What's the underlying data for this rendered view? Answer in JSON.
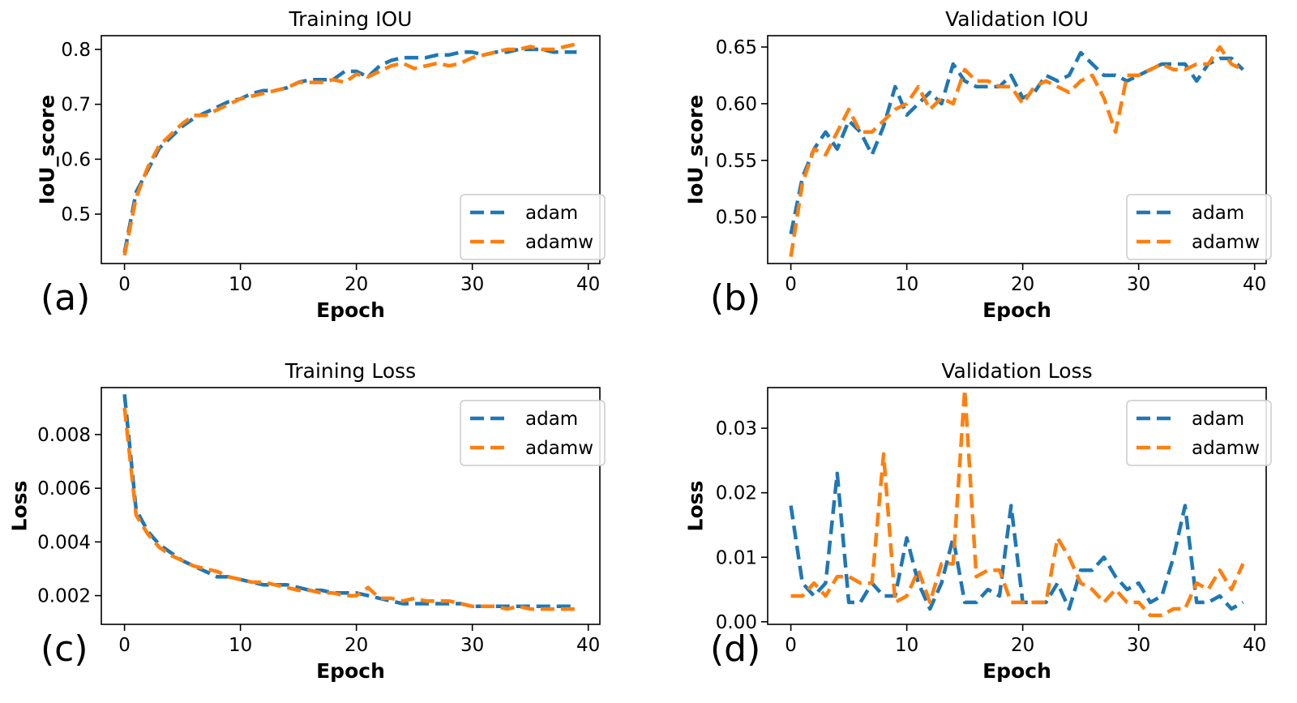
{
  "colors": {
    "adam": "#1f77b4",
    "adamw": "#ff7f0e"
  },
  "chart_data": [
    {
      "type": "line",
      "panel": "(a)",
      "title": "Training IOU",
      "xlabel": "Epoch",
      "ylabel": "IoU_score",
      "xlim": [
        -2,
        41
      ],
      "ylim": [
        0.41,
        0.825
      ],
      "xticks": [
        0,
        10,
        20,
        30,
        40
      ],
      "yticks": [
        0.5,
        0.6,
        0.7,
        0.8
      ],
      "ytick_labels": [
        "0.5",
        "0.6",
        "0.7",
        "0.8"
      ],
      "legend": "lower-right",
      "series": [
        {
          "name": "adam",
          "values": [
            0.43,
            0.54,
            0.58,
            0.62,
            0.64,
            0.66,
            0.675,
            0.685,
            0.695,
            0.705,
            0.71,
            0.72,
            0.725,
            0.725,
            0.73,
            0.74,
            0.745,
            0.745,
            0.745,
            0.76,
            0.76,
            0.75,
            0.77,
            0.78,
            0.785,
            0.785,
            0.785,
            0.79,
            0.79,
            0.795,
            0.795,
            0.79,
            0.795,
            0.795,
            0.8,
            0.8,
            0.8,
            0.795,
            0.795,
            0.795
          ]
        },
        {
          "name": "adamw",
          "values": [
            0.425,
            0.53,
            0.585,
            0.625,
            0.645,
            0.665,
            0.68,
            0.68,
            0.69,
            0.7,
            0.71,
            0.715,
            0.72,
            0.725,
            0.73,
            0.74,
            0.74,
            0.74,
            0.745,
            0.74,
            0.755,
            0.75,
            0.76,
            0.77,
            0.775,
            0.765,
            0.77,
            0.775,
            0.77,
            0.775,
            0.785,
            0.79,
            0.795,
            0.8,
            0.8,
            0.805,
            0.8,
            0.8,
            0.805,
            0.81
          ]
        }
      ]
    },
    {
      "type": "line",
      "panel": "(b)",
      "title": "Validation IOU",
      "xlabel": "Epoch",
      "ylabel": "IoU_score",
      "xlim": [
        -2,
        41
      ],
      "ylim": [
        0.459,
        0.66
      ],
      "xticks": [
        0,
        10,
        20,
        30,
        40
      ],
      "yticks": [
        0.5,
        0.55,
        0.6,
        0.65
      ],
      "ytick_labels": [
        "0.50",
        "0.55",
        "0.60",
        "0.65"
      ],
      "legend": "lower-right",
      "series": [
        {
          "name": "adam",
          "values": [
            0.485,
            0.535,
            0.56,
            0.575,
            0.56,
            0.585,
            0.575,
            0.555,
            0.58,
            0.615,
            0.59,
            0.6,
            0.61,
            0.6,
            0.635,
            0.62,
            0.615,
            0.615,
            0.615,
            0.625,
            0.605,
            0.61,
            0.625,
            0.62,
            0.625,
            0.645,
            0.635,
            0.625,
            0.625,
            0.62,
            0.625,
            0.63,
            0.635,
            0.635,
            0.635,
            0.62,
            0.635,
            0.64,
            0.64,
            0.63
          ]
        },
        {
          "name": "adamw",
          "values": [
            0.465,
            0.53,
            0.56,
            0.555,
            0.575,
            0.595,
            0.575,
            0.575,
            0.585,
            0.595,
            0.6,
            0.615,
            0.595,
            0.605,
            0.6,
            0.63,
            0.62,
            0.62,
            0.615,
            0.615,
            0.6,
            0.615,
            0.62,
            0.615,
            0.61,
            0.62,
            0.625,
            0.605,
            0.575,
            0.625,
            0.625,
            0.63,
            0.635,
            0.63,
            0.63,
            0.635,
            0.635,
            0.65,
            0.635,
            0.63
          ]
        }
      ]
    },
    {
      "type": "line",
      "panel": "(c)",
      "title": "Training Loss",
      "xlabel": "Epoch",
      "ylabel": "Loss",
      "xlim": [
        -2,
        41
      ],
      "ylim": [
        0.00093,
        0.00975
      ],
      "xticks": [
        0,
        10,
        20,
        30,
        40
      ],
      "yticks": [
        0.002,
        0.004,
        0.006,
        0.008
      ],
      "ytick_labels": [
        "0.002",
        "0.004",
        "0.006",
        "0.008"
      ],
      "legend": "upper-right",
      "series": [
        {
          "name": "adam",
          "values": [
            0.0095,
            0.0052,
            0.0044,
            0.0039,
            0.0036,
            0.0033,
            0.0031,
            0.0029,
            0.0027,
            0.0027,
            0.0026,
            0.0025,
            0.0024,
            0.0024,
            0.0024,
            0.0023,
            0.0022,
            0.0022,
            0.0021,
            0.0021,
            0.0021,
            0.002,
            0.0019,
            0.0018,
            0.0017,
            0.0017,
            0.0017,
            0.0017,
            0.0017,
            0.0017,
            0.0016,
            0.0016,
            0.0016,
            0.0016,
            0.0016,
            0.0016,
            0.0016,
            0.0016,
            0.0016,
            0.0016
          ]
        },
        {
          "name": "adamw",
          "values": [
            0.009,
            0.005,
            0.0043,
            0.0038,
            0.0035,
            0.0033,
            0.0031,
            0.003,
            0.0029,
            0.0027,
            0.0026,
            0.0025,
            0.0025,
            0.0024,
            0.0023,
            0.0022,
            0.0022,
            0.0021,
            0.0021,
            0.002,
            0.002,
            0.0023,
            0.0019,
            0.0019,
            0.0018,
            0.0019,
            0.0018,
            0.0018,
            0.0018,
            0.0017,
            0.0016,
            0.0016,
            0.0016,
            0.0015,
            0.0016,
            0.0015,
            0.0015,
            0.0015,
            0.0015,
            0.0015
          ]
        }
      ]
    },
    {
      "type": "line",
      "panel": "(d)",
      "title": "Validation Loss",
      "xlabel": "Epoch",
      "ylabel": "Loss",
      "xlim": [
        -2,
        41
      ],
      "ylim": [
        -0.0004,
        0.0363
      ],
      "xticks": [
        0,
        10,
        20,
        30,
        40
      ],
      "yticks": [
        0.0,
        0.01,
        0.02,
        0.03
      ],
      "ytick_labels": [
        "0.00",
        "0.01",
        "0.02",
        "0.03"
      ],
      "legend": "upper-right",
      "series": [
        {
          "name": "adam",
          "values": [
            0.018,
            0.006,
            0.004,
            0.006,
            0.023,
            0.003,
            0.003,
            0.006,
            0.004,
            0.004,
            0.013,
            0.006,
            0.002,
            0.006,
            0.013,
            0.003,
            0.003,
            0.005,
            0.004,
            0.018,
            0.003,
            0.003,
            0.003,
            0.006,
            0.002,
            0.008,
            0.008,
            0.01,
            0.007,
            0.005,
            0.006,
            0.003,
            0.004,
            0.01,
            0.018,
            0.003,
            0.003,
            0.004,
            0.002,
            0.003
          ]
        },
        {
          "name": "adamw",
          "values": [
            0.004,
            0.004,
            0.006,
            0.004,
            0.007,
            0.007,
            0.006,
            0.006,
            0.026,
            0.003,
            0.004,
            0.008,
            0.003,
            0.009,
            0.009,
            0.036,
            0.007,
            0.008,
            0.008,
            0.003,
            0.003,
            0.003,
            0.003,
            0.013,
            0.01,
            0.006,
            0.005,
            0.003,
            0.005,
            0.003,
            0.003,
            0.001,
            0.001,
            0.002,
            0.002,
            0.006,
            0.005,
            0.008,
            0.005,
            0.009
          ]
        }
      ]
    }
  ]
}
